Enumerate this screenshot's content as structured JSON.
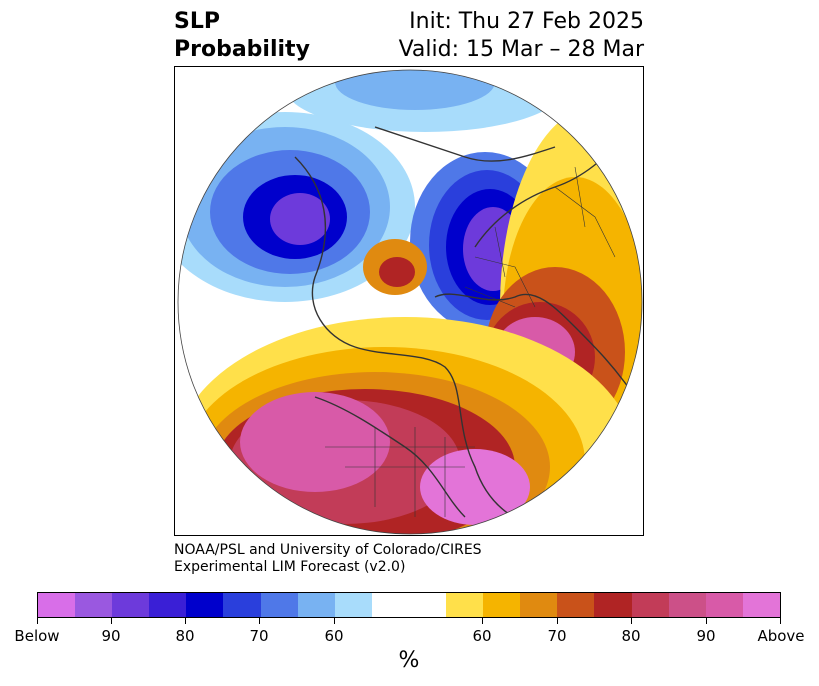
{
  "title": {
    "left_line1": "SLP",
    "left_line2": "Probability",
    "right_line1": "Init: Thu 27 Feb 2025",
    "right_line2": "Valid: 15 Mar – 28 Mar"
  },
  "credit": {
    "line1": "NOAA/PSL and University of Colorado/CIRES",
    "line2": "Experimental LIM Forecast (v2.0)"
  },
  "colorbar": {
    "colors": [
      "#d86ee8",
      "#9a58e0",
      "#6d3adb",
      "#3a1fd6",
      "#0000cc",
      "#2a3fdc",
      "#4f78e8",
      "#78b2f2",
      "#a8dcfb",
      "#ffffff",
      "#ffe04a",
      "#f5b400",
      "#e08a10",
      "#c9521a",
      "#b02424",
      "#c23c58",
      "#cc5088",
      "#d85aa8",
      "#e374d8"
    ],
    "tick_labels": [
      "Below",
      "90",
      "80",
      "70",
      "60",
      "60",
      "70",
      "80",
      "90",
      "Above"
    ],
    "unit": "%"
  },
  "map": {
    "projection": "polar-stereographic-north",
    "anomaly_colors": {
      "blue_light": "#a8dcfb",
      "blue_mid": "#78b2f2",
      "blue": "#4f78e8",
      "blue_dark": "#2a3fdc",
      "navy": "#0000cc",
      "purple": "#6d3adb",
      "yellow": "#ffe04a",
      "gold": "#f5b400",
      "orange": "#e08a10",
      "rust": "#c9521a",
      "red": "#b02424",
      "rose": "#c23c58",
      "magenta": "#d85aa8",
      "pink": "#e374d8"
    }
  }
}
